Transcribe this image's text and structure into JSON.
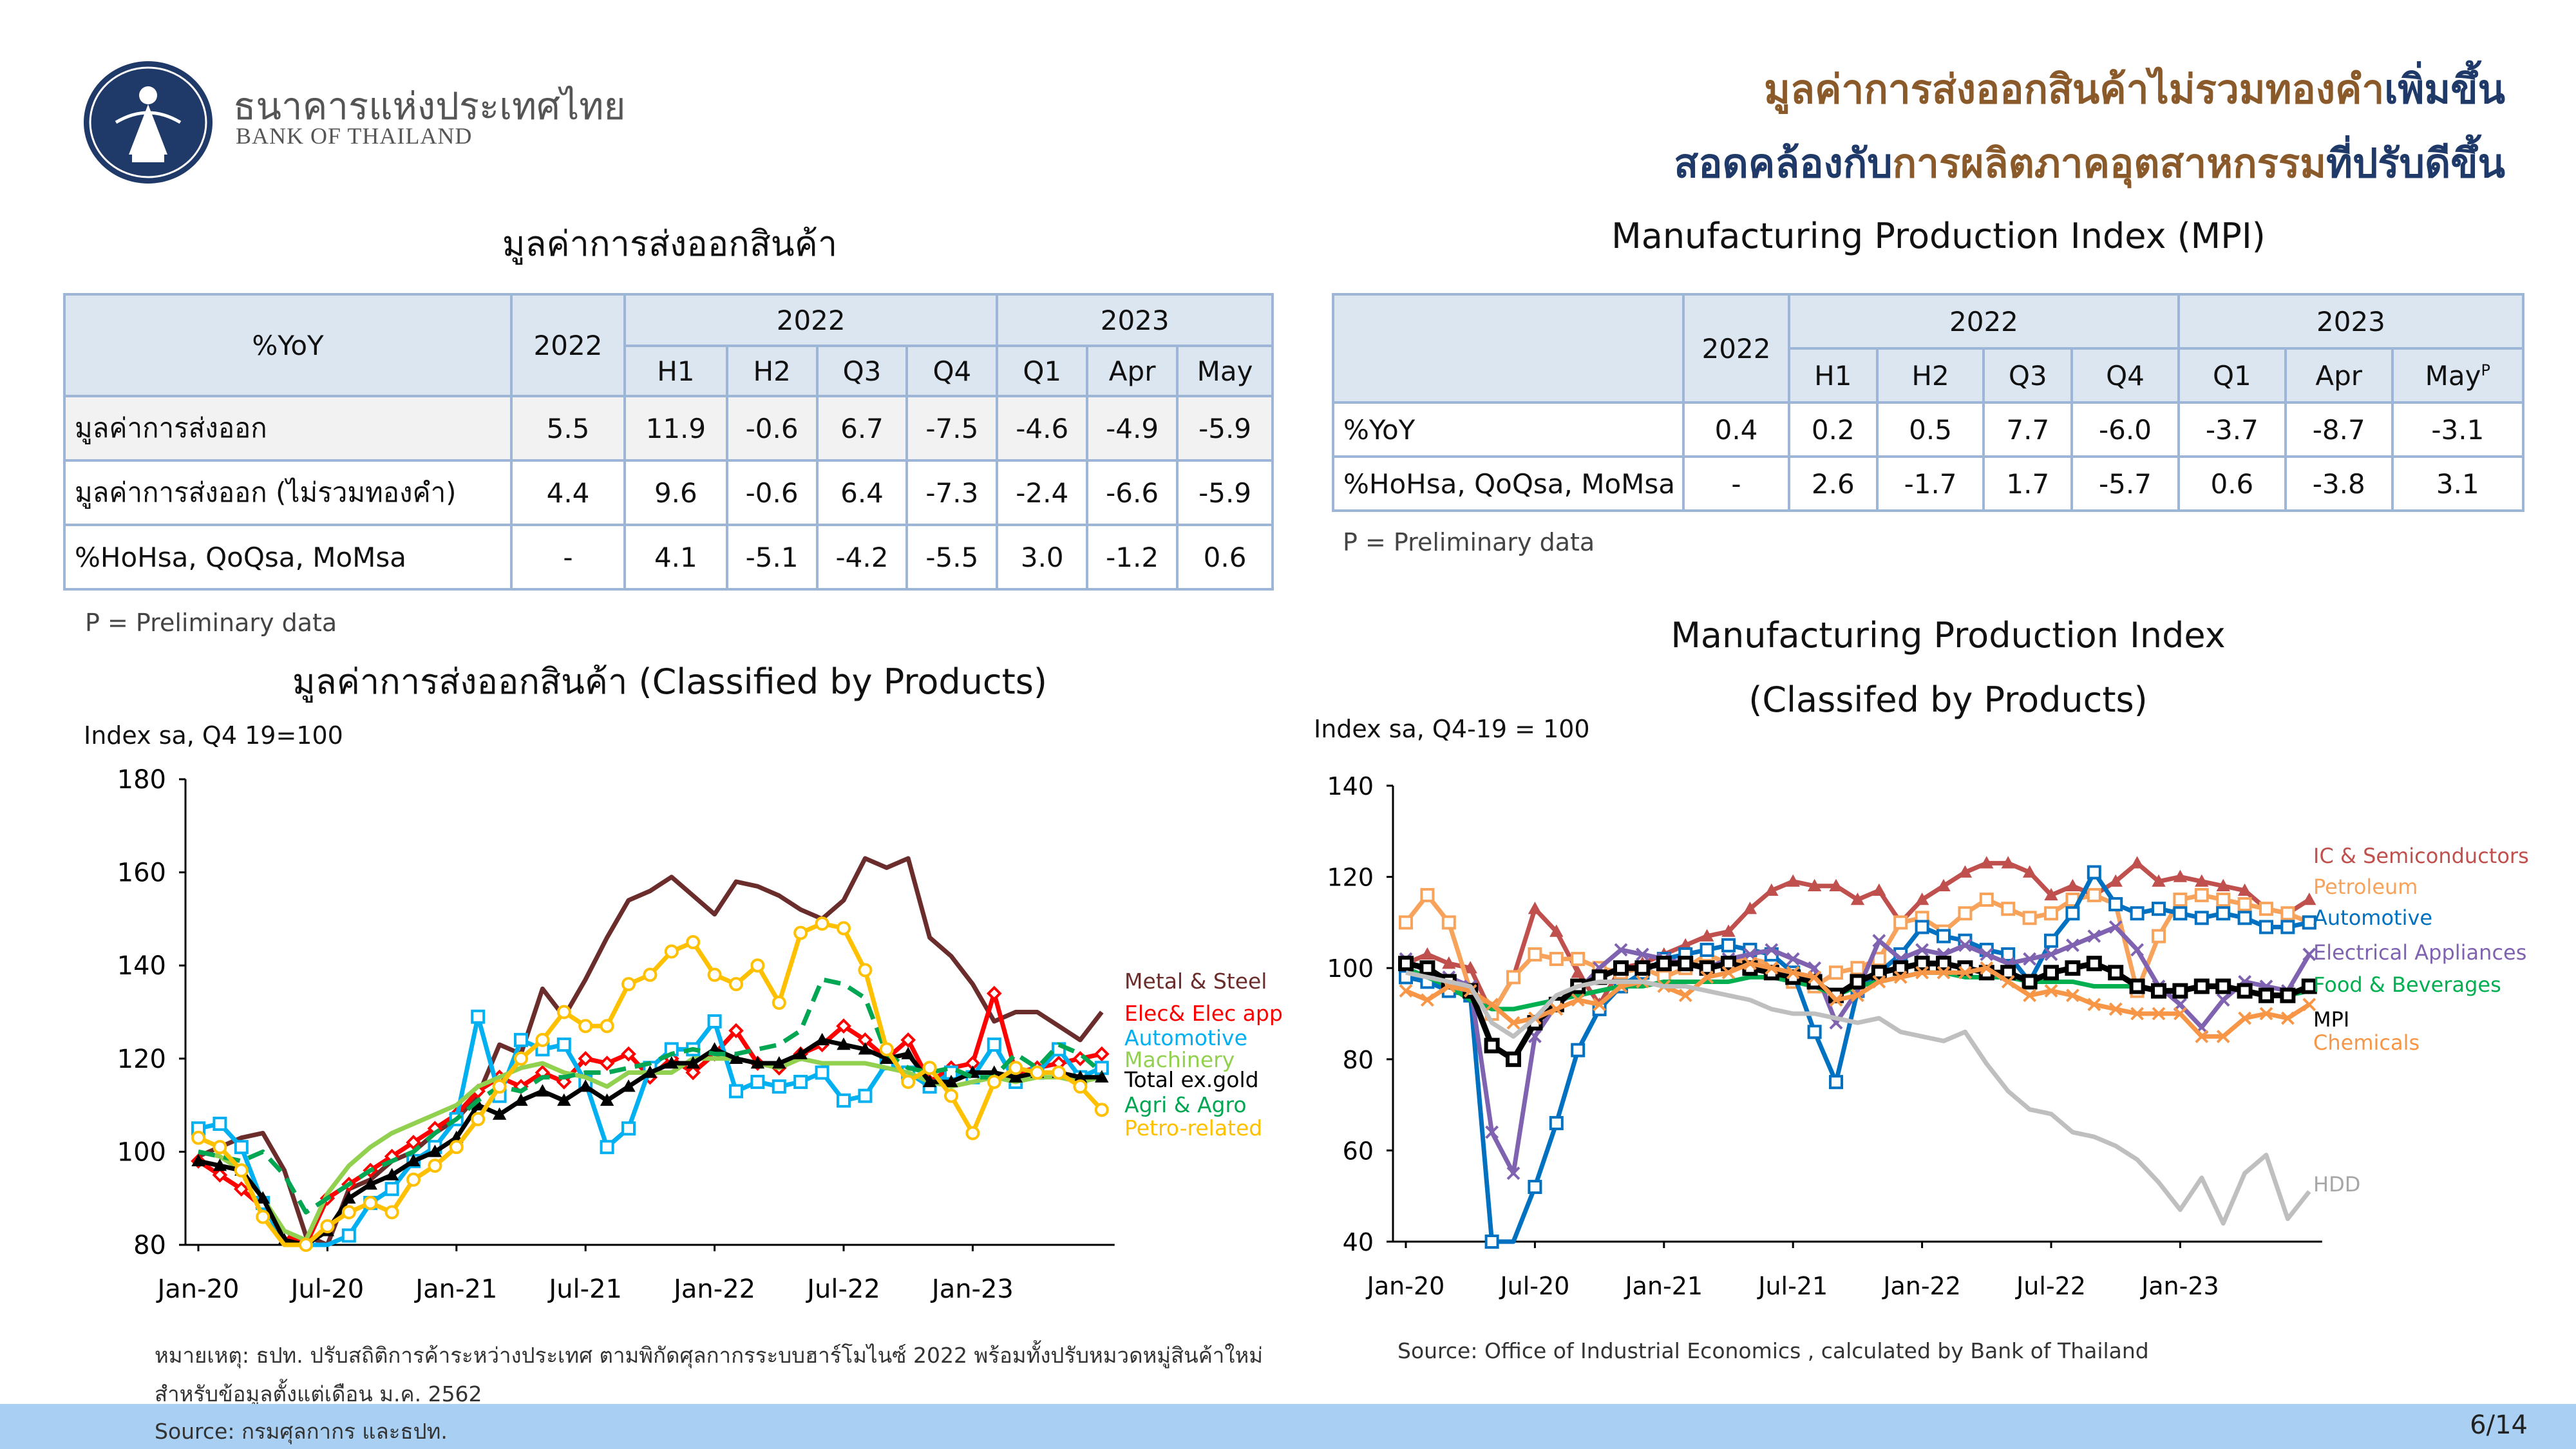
{
  "header": {
    "bank_name_th": "ธนาคารแห่งประเทศไทย",
    "bank_name_en": "BANK OF THAILAND",
    "headline_line1_part1": "มูลค่าการส่งออกสินค้าไม่รวมทองคำ",
    "headline_line1_part2": "เพิ่มขึ้น",
    "headline_line2_part1": "สอดคล้องกับ",
    "headline_line2_part2": "การผลิตภาคอุตสาหกรรม",
    "headline_line2_part3": "ที่ปรับดีขึ้น",
    "colors": {
      "brown": "#8B5A2B",
      "navy": "#1F3A68"
    }
  },
  "export_table": {
    "title": "มูลค่าการส่งออกสินค้า",
    "corner": "%YoY",
    "year_col": "2022",
    "group_2022": "2022",
    "group_2023": "2023",
    "subcols": [
      "H1",
      "H2",
      "Q3",
      "Q4",
      "Q1",
      "Apr",
      "May"
    ],
    "rows": [
      {
        "label": "มูลค่าการส่งออก",
        "values": [
          "5.5",
          "11.9",
          "-0.6",
          "6.7",
          "-7.5",
          "-4.6",
          "-4.9",
          "-5.9"
        ]
      },
      {
        "label": "มูลค่าการส่งออก (ไม่รวมทองคำ)",
        "values": [
          "4.4",
          "9.6",
          "-0.6",
          "6.4",
          "-7.3",
          "-2.4",
          "-6.6",
          "-5.9"
        ]
      },
      {
        "label": "%HoHsa, QoQsa, MoMsa",
        "values": [
          "-",
          "4.1",
          "-5.1",
          "-4.2",
          "-5.5",
          "3.0",
          "-1.2",
          "0.6"
        ]
      }
    ],
    "note": "P = Preliminary data"
  },
  "mpi_table": {
    "title": "Manufacturing Production Index (MPI)",
    "year_col": "2022",
    "group_2022": "2022",
    "group_2023": "2023",
    "subcols": [
      "H1",
      "H2",
      "Q3",
      "Q4",
      "Q1",
      "Apr",
      "May"
    ],
    "superscript": "P",
    "rows": [
      {
        "label": "%YoY",
        "values": [
          "0.4",
          "0.2",
          "0.5",
          "7.7",
          "-6.0",
          "-3.7",
          "-8.7",
          "-3.1"
        ]
      },
      {
        "label": "%HoHsa, QoQsa, MoMsa",
        "values": [
          "-",
          "2.6",
          "-1.7",
          "1.7",
          "-5.7",
          "0.6",
          "-3.8",
          "3.1"
        ]
      }
    ],
    "note": "P = Preliminary data"
  },
  "export_chart_labels": {
    "title": "มูลค่าการส่งออกสินค้า (Classified by Products)",
    "ylabel": "Index sa, Q4 19=100"
  },
  "mpi_chart_labels": {
    "title_line1": "Manufacturing Production Index",
    "title_line2": "(Classifed by Products)",
    "ylabel": "Index sa, Q4-19 = 100"
  },
  "chart_data": [
    {
      "type": "line",
      "title": "มูลค่าการส่งออกสินค้า (Classified by Products)",
      "ylabel": "Index sa, Q4 19=100",
      "ylim": [
        80,
        180
      ],
      "yticks": [
        80,
        100,
        120,
        140,
        160,
        180
      ],
      "xticks": [
        "Jan-20",
        "Jul-20",
        "Jan-21",
        "Jul-21",
        "Jan-22",
        "Jul-22",
        "Jan-23"
      ],
      "x_start": "Jan-20",
      "x_end": "May-23",
      "grid": false,
      "legend": "right",
      "series": [
        {
          "name": "Metal & Steel",
          "color": "#6B2C2C",
          "marker": "none",
          "values": [
            99,
            101,
            103,
            104,
            96,
            82,
            75,
            92,
            94,
            98,
            100,
            104,
            107,
            112,
            123,
            121,
            135,
            129,
            137,
            146,
            154,
            156,
            159,
            155,
            151,
            158,
            157,
            155,
            152,
            150,
            154,
            163,
            161,
            163,
            146,
            142,
            136,
            128,
            130,
            130,
            127,
            124,
            130
          ]
        },
        {
          "name": "Elec& Elec app",
          "color": "#FF0000",
          "marker": "diamond",
          "values": [
            98,
            95,
            92,
            88,
            82,
            79,
            90,
            93,
            96,
            99,
            102,
            105,
            108,
            113,
            116,
            114,
            117,
            115,
            120,
            119,
            121,
            116,
            120,
            117,
            121,
            126,
            119,
            118,
            121,
            123,
            127,
            124,
            120,
            124,
            115,
            118,
            119,
            134,
            117,
            118,
            119,
            120,
            121
          ]
        },
        {
          "name": "Automotive",
          "color": "#00B0F0",
          "marker": "square",
          "values": [
            105,
            106,
            101,
            89,
            72,
            70,
            72,
            82,
            89,
            92,
            98,
            101,
            107,
            129,
            112,
            124,
            122,
            123,
            115,
            101,
            105,
            118,
            122,
            122,
            128,
            113,
            115,
            114,
            115,
            117,
            111,
            112,
            119,
            117,
            114,
            117,
            116,
            123,
            115,
            117,
            122,
            116,
            118
          ]
        },
        {
          "name": "Machinery",
          "color": "#92D050",
          "marker": "none",
          "values": [
            100,
            99,
            96,
            90,
            83,
            81,
            91,
            97,
            101,
            104,
            106,
            108,
            110,
            114,
            116,
            118,
            119,
            117,
            116,
            114,
            117,
            117,
            117,
            120,
            120,
            120,
            119,
            118,
            120,
            119,
            119,
            119,
            118,
            117,
            115,
            114,
            115,
            116,
            115,
            116,
            116,
            115,
            116
          ]
        },
        {
          "name": "Total ex.gold",
          "color": "#000000",
          "marker": "triangle",
          "values": [
            98,
            97,
            96,
            90,
            81,
            79,
            83,
            90,
            93,
            95,
            98,
            100,
            103,
            110,
            108,
            111,
            113,
            111,
            114,
            111,
            114,
            117,
            119,
            119,
            122,
            120,
            119,
            119,
            121,
            124,
            123,
            122,
            120,
            121,
            115,
            115,
            117,
            117,
            116,
            117,
            117,
            116,
            116
          ]
        },
        {
          "name": "Agri & Agro",
          "color": "#00A651",
          "marker": "none",
          "dashed": true,
          "values": [
            100,
            99,
            98,
            100,
            95,
            87,
            90,
            93,
            96,
            98,
            100,
            104,
            107,
            111,
            114,
            113,
            116,
            116,
            117,
            117,
            118,
            119,
            121,
            122,
            121,
            121,
            122,
            123,
            126,
            137,
            136,
            133,
            121,
            118,
            117,
            118,
            116,
            116,
            121,
            118,
            123,
            121,
            117
          ]
        },
        {
          "name": "Petro-related",
          "color": "#FFC000",
          "marker": "circle",
          "values": [
            103,
            101,
            96,
            86,
            79,
            80,
            84,
            87,
            89,
            87,
            94,
            97,
            101,
            107,
            114,
            120,
            124,
            130,
            127,
            127,
            136,
            138,
            143,
            145,
            138,
            136,
            140,
            132,
            147,
            149,
            148,
            139,
            122,
            115,
            118,
            112,
            104,
            115,
            118,
            117,
            117,
            114,
            109
          ]
        }
      ]
    },
    {
      "type": "line",
      "title": "Manufacturing Production Index (Classifed by Products)",
      "ylabel": "Index sa, Q4-19 = 100",
      "ylim": [
        40,
        140
      ],
      "yticks": [
        40,
        60,
        80,
        100,
        120,
        140
      ],
      "xticks": [
        "Jan-20",
        "Jul-20",
        "Jan-21",
        "Jul-21",
        "Jan-22",
        "Jul-22",
        "Jan-23"
      ],
      "x_start": "Jan-20",
      "x_end": "May-23",
      "grid": false,
      "legend": "right",
      "series": [
        {
          "name": "IC & Semiconductors",
          "color": "#C0504D",
          "marker": "triangle",
          "values": [
            101,
            103,
            101,
            100,
            90,
            98,
            113,
            108,
            99,
            92,
            100,
            101,
            103,
            105,
            107,
            108,
            113,
            117,
            119,
            118,
            118,
            115,
            117,
            110,
            115,
            118,
            121,
            123,
            123,
            121,
            116,
            118,
            116,
            119,
            123,
            119,
            120,
            119,
            118,
            117,
            113,
            112,
            115
          ]
        },
        {
          "name": "Petroleum",
          "color": "#F7A35C",
          "marker": "square",
          "values": [
            110,
            116,
            110,
            95,
            90,
            98,
            103,
            102,
            102,
            100,
            99,
            100,
            98,
            100,
            103,
            101,
            102,
            101,
            97,
            96,
            99,
            100,
            102,
            110,
            111,
            108,
            112,
            115,
            113,
            111,
            112,
            115,
            116,
            114,
            95,
            107,
            115,
            116,
            115,
            114,
            113,
            112,
            110
          ]
        },
        {
          "name": "Automotive",
          "color": "#0070C0",
          "marker": "square",
          "values": [
            98,
            97,
            95,
            94,
            40,
            38,
            52,
            66,
            82,
            91,
            96,
            99,
            102,
            103,
            104,
            105,
            104,
            103,
            99,
            86,
            75,
            95,
            99,
            103,
            109,
            107,
            106,
            104,
            103,
            97,
            106,
            112,
            121,
            114,
            112,
            113,
            112,
            111,
            112,
            111,
            109,
            109,
            110
          ]
        },
        {
          "name": "Electrical Appliances",
          "color": "#7F63B1",
          "marker": "cross",
          "values": [
            102,
            99,
            98,
            96,
            64,
            55,
            85,
            92,
            95,
            100,
            104,
            103,
            102,
            101,
            100,
            102,
            103,
            104,
            102,
            100,
            88,
            95,
            106,
            102,
            104,
            103,
            105,
            103,
            101,
            102,
            103,
            105,
            107,
            109,
            104,
            96,
            92,
            87,
            93,
            97,
            96,
            95,
            103
          ]
        },
        {
          "name": "Food & Beverages",
          "color": "#00B050",
          "marker": "none",
          "values": [
            100,
            98,
            96,
            93,
            91,
            91,
            92,
            93,
            94,
            95,
            96,
            96,
            97,
            97,
            97,
            97,
            98,
            98,
            97,
            96,
            94,
            96,
            97,
            98,
            99,
            99,
            98,
            98,
            98,
            97,
            97,
            97,
            96,
            96,
            96,
            95,
            95,
            96,
            96,
            95,
            94,
            94,
            95
          ]
        },
        {
          "name": "MPI",
          "color": "#000000",
          "marker": "thicksquare",
          "values": [
            101,
            100,
            97,
            95,
            83,
            80,
            88,
            92,
            96,
            98,
            100,
            100,
            101,
            101,
            100,
            101,
            100,
            99,
            98,
            97,
            94,
            97,
            99,
            100,
            101,
            101,
            100,
            99,
            99,
            97,
            99,
            100,
            101,
            99,
            96,
            95,
            95,
            96,
            96,
            95,
            94,
            94,
            96
          ]
        },
        {
          "name": "Chemicals",
          "color": "#F79646",
          "marker": "cross",
          "values": [
            95,
            93,
            96,
            95,
            92,
            88,
            89,
            91,
            93,
            92,
            96,
            97,
            96,
            94,
            98,
            99,
            101,
            100,
            99,
            98,
            93,
            94,
            97,
            98,
            99,
            99,
            99,
            100,
            97,
            94,
            95,
            94,
            92,
            91,
            90,
            90,
            90,
            85,
            85,
            89,
            90,
            89,
            92
          ]
        },
        {
          "name": "HDD",
          "color": "#BFBFBF",
          "marker": "none",
          "values": [
            99,
            98,
            97,
            96,
            88,
            85,
            89,
            94,
            96,
            97,
            97,
            97,
            96,
            96,
            95,
            94,
            93,
            91,
            90,
            90,
            89,
            88,
            89,
            86,
            85,
            84,
            86,
            79,
            73,
            69,
            68,
            64,
            63,
            61,
            58,
            53,
            47,
            54,
            44,
            55,
            59,
            45,
            51
          ]
        }
      ]
    }
  ],
  "footnotes": {
    "left_note_line1": "หมายเหตุ: ธปท. ปรับสถิติการค้าระหว่างประเทศ ตามพิกัดศุลกากรระบบฮาร์โมไนซ์ 2022 พร้อมทั้งปรับหมวดหมู่สินค้าใหม่",
    "left_note_line2": "สำหรับข้อมูลตั้งแต่เดือน ม.ค. 2562",
    "left_source": "Source: กรมศุลกากร และธปท.",
    "right_source": "Source: Office of Industrial Economics , calculated by Bank of Thailand",
    "page_number": "6/14"
  }
}
